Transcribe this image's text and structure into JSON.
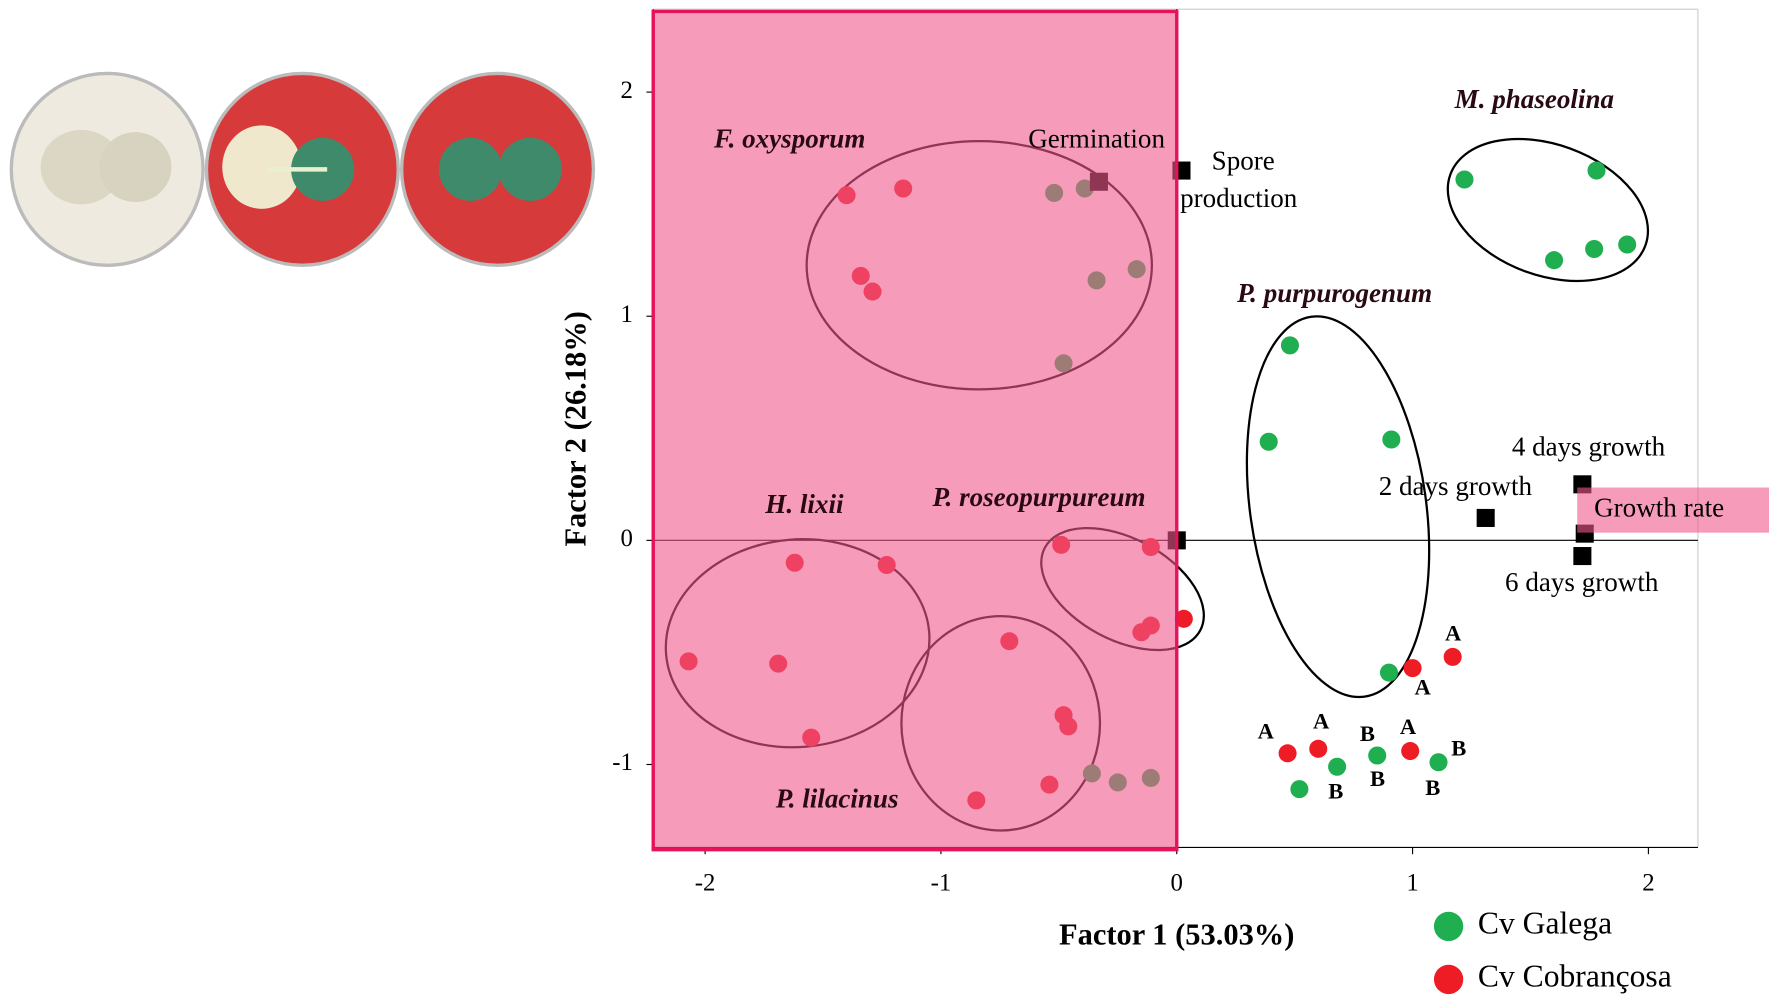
{
  "chart_data": {
    "type": "scatter",
    "x_label": "Factor 1 (53.03%)",
    "y_label": "Factor 2 (26.18%)",
    "xlim": [
      -2.22,
      2.21
    ],
    "ylim": [
      -1.37,
      2.37
    ],
    "xticks": [
      -2,
      -1,
      0,
      1,
      2
    ],
    "yticks": [
      -1,
      0,
      1,
      2
    ],
    "series": [
      {
        "name": "Cv Galega",
        "color": "#1fae50",
        "x": [
          1.22,
          1.78,
          1.6,
          1.77,
          1.91,
          0.48,
          0.39,
          0.91,
          0.9,
          0.68,
          0.52,
          0.85,
          1.11,
          -0.52,
          -0.39,
          -0.34,
          -0.17,
          -0.48,
          -0.36,
          -0.25,
          -0.11
        ],
        "values": [
          1.61,
          1.65,
          1.25,
          1.3,
          1.32,
          0.87,
          0.44,
          0.45,
          -0.59,
          -1.01,
          -1.11,
          -0.96,
          -0.99,
          1.55,
          1.57,
          1.16,
          1.21,
          0.79,
          -1.04,
          -1.08,
          -1.06
        ]
      },
      {
        "name": "Cv Cobrançosa",
        "color": "#ee1c24",
        "x": [
          -1.4,
          -1.16,
          -1.34,
          -1.29,
          -1.62,
          -1.23,
          -2.07,
          -1.69,
          -1.55,
          -0.49,
          -0.11,
          -0.11,
          -0.15,
          0.03,
          -0.71,
          -0.48,
          -0.46,
          -0.54,
          -0.85,
          1.0,
          1.17,
          0.47,
          0.6,
          0.99
        ],
        "values": [
          1.54,
          1.57,
          1.18,
          1.11,
          -0.1,
          -0.11,
          -0.54,
          -0.55,
          -0.88,
          -0.02,
          -0.03,
          -0.38,
          -0.41,
          -0.35,
          -0.45,
          -0.78,
          -0.83,
          -1.09,
          -1.16,
          -0.57,
          -0.52,
          -0.95,
          -0.93,
          -0.94
        ]
      }
    ],
    "variables": {
      "labels": [
        "Germination",
        "Spore production",
        "4 days growth",
        "2 days growth",
        "Growth rate",
        "6 days growth",
        null
      ],
      "x": [
        -0.33,
        0.02,
        1.72,
        1.31,
        1.73,
        1.72,
        0
      ],
      "y": [
        1.6,
        1.65,
        0.25,
        0.1,
        0.03,
        -0.07,
        0
      ]
    },
    "groups": [
      "F. oxysporum",
      "M. phaseolina",
      "P. purpurogenum",
      "H. lixii",
      "P. roseopurpureum",
      "P. lilacinus"
    ],
    "letters": [
      "A",
      "A",
      "A",
      "A",
      "A",
      "B",
      "B",
      "B",
      "B",
      "B"
    ]
  }
}
